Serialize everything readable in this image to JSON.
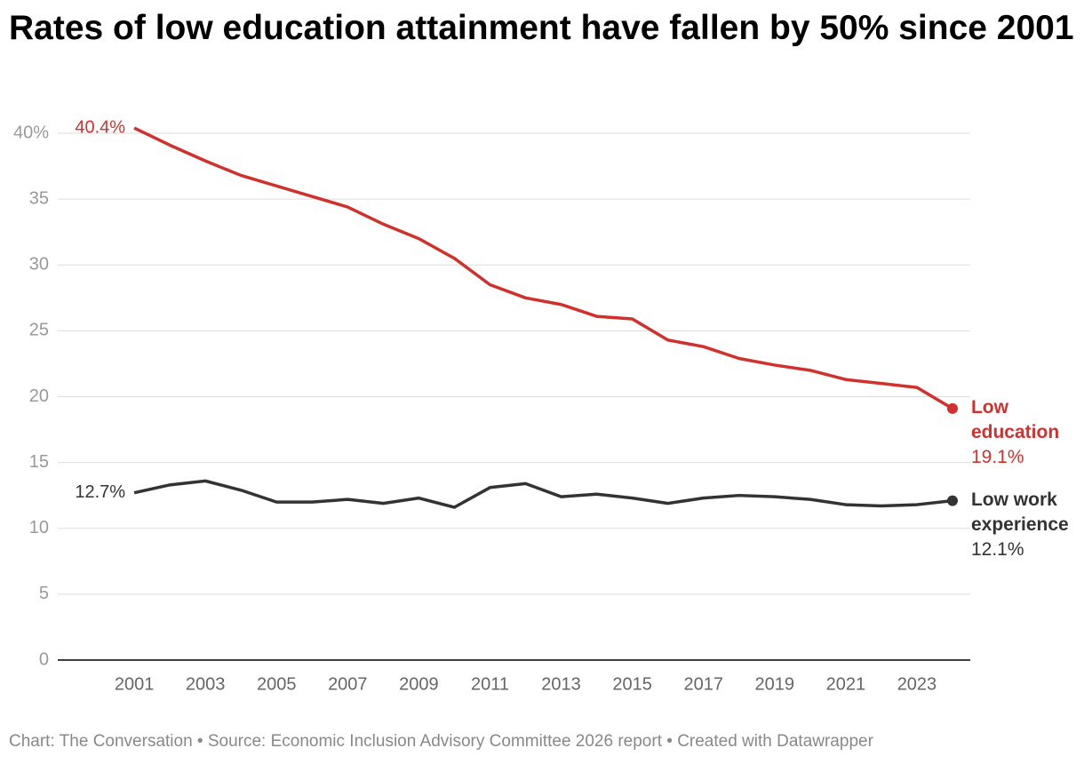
{
  "chart_data": {
    "type": "line",
    "title": "Rates of low education attainment have fallen by 50% since 2001",
    "source": "Chart: The Conversation • Source: Economic Inclusion Advisory Committee 2026 report • Created with Datawrapper",
    "x": [
      2001,
      2002,
      2003,
      2004,
      2005,
      2006,
      2007,
      2008,
      2009,
      2010,
      2011,
      2012,
      2013,
      2014,
      2015,
      2016,
      2017,
      2018,
      2019,
      2020,
      2021,
      2022,
      2023,
      2024
    ],
    "xlim": [
      1998.85,
      2024.5
    ],
    "xticks": [
      2001,
      2003,
      2005,
      2007,
      2009,
      2011,
      2013,
      2015,
      2017,
      2019,
      2021,
      2023
    ],
    "ylim": [
      0,
      40
    ],
    "yticks": [
      0,
      5,
      10,
      15,
      20,
      25,
      30,
      35,
      {
        "value": 40,
        "label": "40%"
      }
    ],
    "grid": true,
    "series": [
      {
        "name": "Low education",
        "color": "#d0312d",
        "values": [
          40.4,
          39.1,
          37.9,
          36.8,
          36.0,
          35.2,
          34.4,
          33.1,
          32.0,
          30.5,
          28.5,
          27.5,
          27.0,
          26.1,
          25.9,
          24.3,
          23.8,
          22.9,
          22.4,
          22.0,
          21.3,
          21.0,
          20.7,
          19.1
        ],
        "value_labels": [
          "40.4%",
          null,
          null,
          null,
          null,
          null,
          null,
          null,
          null,
          null,
          null,
          null,
          null,
          null,
          null,
          null,
          null,
          null,
          null,
          null,
          null,
          null,
          null,
          "19.1%"
        ]
      },
      {
        "name": "Low work experience",
        "color": "#333333",
        "values": [
          12.7,
          13.3,
          13.6,
          12.9,
          12.0,
          12.0,
          12.2,
          11.9,
          12.3,
          11.6,
          13.1,
          13.4,
          12.4,
          12.6,
          12.3,
          11.9,
          12.3,
          12.5,
          12.4,
          12.2,
          11.8,
          11.7,
          11.8,
          12.1
        ],
        "value_labels": [
          "12.7%",
          null,
          null,
          null,
          null,
          null,
          null,
          null,
          null,
          null,
          null,
          null,
          null,
          null,
          null,
          null,
          null,
          null,
          null,
          null,
          null,
          null,
          null,
          "12.1%"
        ]
      }
    ]
  }
}
